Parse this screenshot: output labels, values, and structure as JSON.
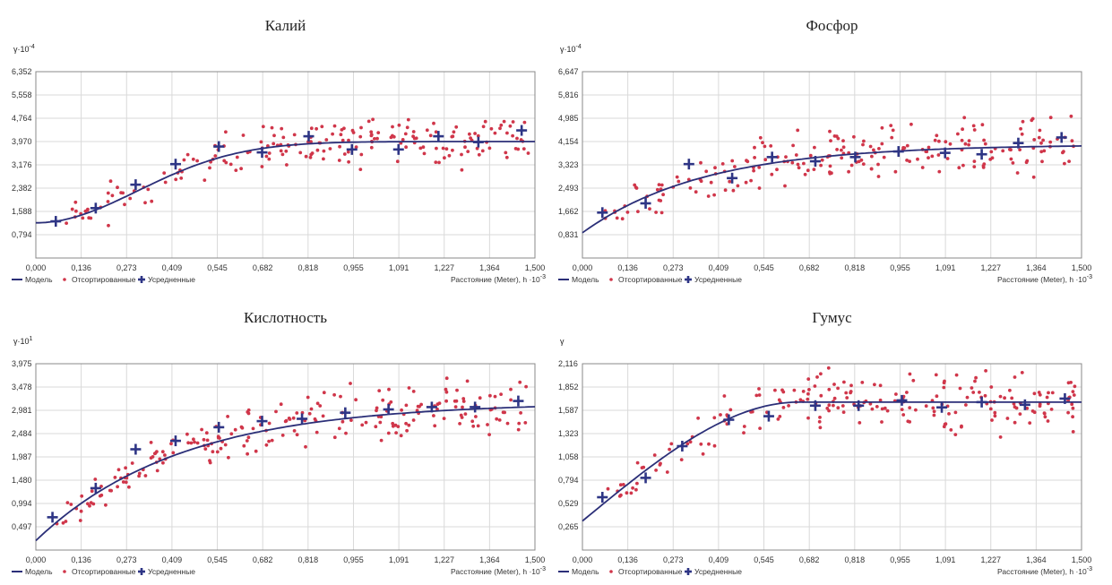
{
  "chart_data": [
    {
      "type": "scatter",
      "title": "Калий",
      "yunit": {
        "base": "γ·10",
        "exp": "-4"
      },
      "xlabel": {
        "base": "Расстояние (Meter), h ·10",
        "exp": "-3"
      },
      "legend": {
        "position": "bottom-left",
        "items": [
          "Модель",
          "Отсортированные",
          "Усредненные"
        ]
      },
      "xticks": [
        "0,000",
        "0,136",
        "0,273",
        "0,409",
        "0,545",
        "0,682",
        "0,818",
        "0,955",
        "1,091",
        "1,227",
        "1,364",
        "1,500"
      ],
      "yticks": [
        "0,794",
        "1,588",
        "2,382",
        "3,176",
        "3,970",
        "4,764",
        "5,558",
        "6,352"
      ],
      "xlim": [
        0,
        1.5
      ],
      "ylim": [
        0,
        6.352
      ],
      "model": {
        "nugget": 1.2,
        "sill": 3.97,
        "range": 0.75
      },
      "averaged": [
        [
          0.06,
          1.25
        ],
        [
          0.18,
          1.7
        ],
        [
          0.3,
          2.5
        ],
        [
          0.42,
          3.2
        ],
        [
          0.55,
          3.8
        ],
        [
          0.68,
          3.6
        ],
        [
          0.82,
          4.15
        ],
        [
          0.95,
          3.7
        ],
        [
          1.09,
          3.7
        ],
        [
          1.21,
          4.15
        ],
        [
          1.33,
          3.95
        ],
        [
          1.46,
          4.35
        ]
      ],
      "scatter": {
        "count": 200,
        "seed": 11,
        "spread": 0.55
      }
    },
    {
      "type": "scatter",
      "title": "Фосфор",
      "yunit": {
        "base": "γ·10",
        "exp": "-4"
      },
      "xlabel": {
        "base": "Расстояние (Meter), h ·10",
        "exp": "-3"
      },
      "legend": {
        "position": "bottom-left",
        "items": [
          "Модель",
          "Отсортированные",
          "Усредненные"
        ]
      },
      "xticks": [
        "0,000",
        "0,136",
        "0,273",
        "0,409",
        "0,545",
        "0,682",
        "0,818",
        "0,955",
        "1,091",
        "1,227",
        "1,364",
        "1,500"
      ],
      "yticks": [
        "0,831",
        "1,662",
        "2,493",
        "3,323",
        "4,154",
        "4,985",
        "5,816",
        "6,647"
      ],
      "xlim": [
        0,
        1.5
      ],
      "ylim": [
        0,
        6.647
      ],
      "model": {
        "nugget": 0.9,
        "sill": 4.05,
        "range": 1.1,
        "kind": "exp"
      },
      "averaged": [
        [
          0.06,
          1.62
        ],
        [
          0.19,
          1.95
        ],
        [
          0.32,
          3.35
        ],
        [
          0.45,
          2.85
        ],
        [
          0.57,
          3.6
        ],
        [
          0.7,
          3.45
        ],
        [
          0.82,
          3.6
        ],
        [
          0.95,
          3.8
        ],
        [
          1.09,
          3.75
        ],
        [
          1.2,
          3.7
        ],
        [
          1.31,
          4.1
        ],
        [
          1.44,
          4.3
        ]
      ],
      "scatter": {
        "count": 210,
        "seed": 23,
        "spread": 0.7
      }
    },
    {
      "type": "scatter",
      "title": "Кислотность",
      "yunit": {
        "base": "γ·10",
        "exp": "1"
      },
      "xlabel": {
        "base": "Расстояние (Meter), h ·10",
        "exp": "-3"
      },
      "legend": {
        "position": "bottom-left",
        "items": [
          "Модель",
          "Отсортированные",
          "Усредненные"
        ]
      },
      "xticks": [
        "0,000",
        "0,136",
        "0,273",
        "0,409",
        "0,545",
        "0,682",
        "0,818",
        "0,955",
        "1,091",
        "1,227",
        "1,364",
        "1,500"
      ],
      "yticks": [
        "0,497",
        "0,994",
        "1,480",
        "1,987",
        "2,484",
        "2,981",
        "3,478",
        "3,975"
      ],
      "xlim": [
        0,
        1.5
      ],
      "ylim": [
        0,
        3.975
      ],
      "model": {
        "nugget": 0.2,
        "sill": 3.15,
        "range": 1.3,
        "kind": "exp"
      },
      "averaged": [
        [
          0.05,
          0.7
        ],
        [
          0.18,
          1.32
        ],
        [
          0.3,
          2.15
        ],
        [
          0.42,
          2.33
        ],
        [
          0.55,
          2.62
        ],
        [
          0.68,
          2.75
        ],
        [
          0.8,
          2.8
        ],
        [
          0.93,
          2.93
        ],
        [
          1.06,
          3.0
        ],
        [
          1.19,
          3.05
        ],
        [
          1.32,
          3.05
        ],
        [
          1.45,
          3.18
        ]
      ],
      "scatter": {
        "count": 220,
        "seed": 37,
        "spread": 0.38
      }
    },
    {
      "type": "scatter",
      "title": "Гумус",
      "yunit": {
        "base": "γ",
        "exp": ""
      },
      "xlabel": {
        "base": "Расстояние (Meter), h ·10",
        "exp": "-3"
      },
      "legend": {
        "position": "bottom-left",
        "items": [
          "Модель",
          "Отсортированные",
          "Усредненные"
        ]
      },
      "xticks": [
        "0,000",
        "0,136",
        "0,273",
        "0,409",
        "0,545",
        "0,682",
        "0,818",
        "0,955",
        "1,091",
        "1,227",
        "1,364",
        "1,500"
      ],
      "yticks": [
        "0,265",
        "0,529",
        "0,794",
        "1,058",
        "1,323",
        "1,587",
        "1,852",
        "2,116"
      ],
      "xlim": [
        0,
        1.5
      ],
      "ylim": [
        0,
        2.116
      ],
      "model": {
        "nugget": 0.33,
        "sill": 1.68,
        "range": 0.65,
        "kind": "sph"
      },
      "averaged": [
        [
          0.06,
          0.6
        ],
        [
          0.19,
          0.82
        ],
        [
          0.3,
          1.18
        ],
        [
          0.44,
          1.48
        ],
        [
          0.56,
          1.52
        ],
        [
          0.7,
          1.64
        ],
        [
          0.83,
          1.64
        ],
        [
          0.96,
          1.7
        ],
        [
          1.08,
          1.62
        ],
        [
          1.2,
          1.68
        ],
        [
          1.33,
          1.65
        ],
        [
          1.45,
          1.72
        ]
      ],
      "scatter": {
        "count": 210,
        "seed": 51,
        "spread": 0.22
      }
    }
  ]
}
